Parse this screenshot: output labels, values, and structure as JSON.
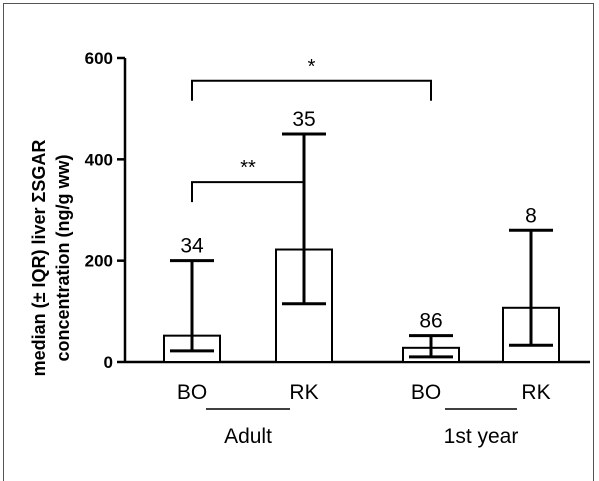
{
  "chart_data": {
    "type": "bar",
    "ylabel_line1": "median (± IQR) liver ΣSGAR",
    "ylabel_line2": "concentration (ng/g ww)",
    "ylim": [
      0,
      600
    ],
    "yticks": [
      "0",
      "200",
      "400",
      "600"
    ],
    "categories": [
      "BO",
      "RK",
      "BO",
      "RK"
    ],
    "groups": [
      {
        "label": "Adult",
        "members": [
          0,
          1
        ]
      },
      {
        "label": "1st year",
        "members": [
          2,
          3
        ]
      }
    ],
    "values": [
      52,
      222,
      28,
      107
    ],
    "error_low": [
      22,
      115,
      10,
      33
    ],
    "error_high": [
      200,
      450,
      52,
      260
    ],
    "n_labels": [
      "34",
      "35",
      "86",
      "8"
    ],
    "significance": [
      {
        "from": 0,
        "to": 1,
        "label": "**",
        "level": 355
      },
      {
        "from": 0,
        "to": 2,
        "label": "*",
        "level": 555
      }
    ],
    "grid": false
  }
}
